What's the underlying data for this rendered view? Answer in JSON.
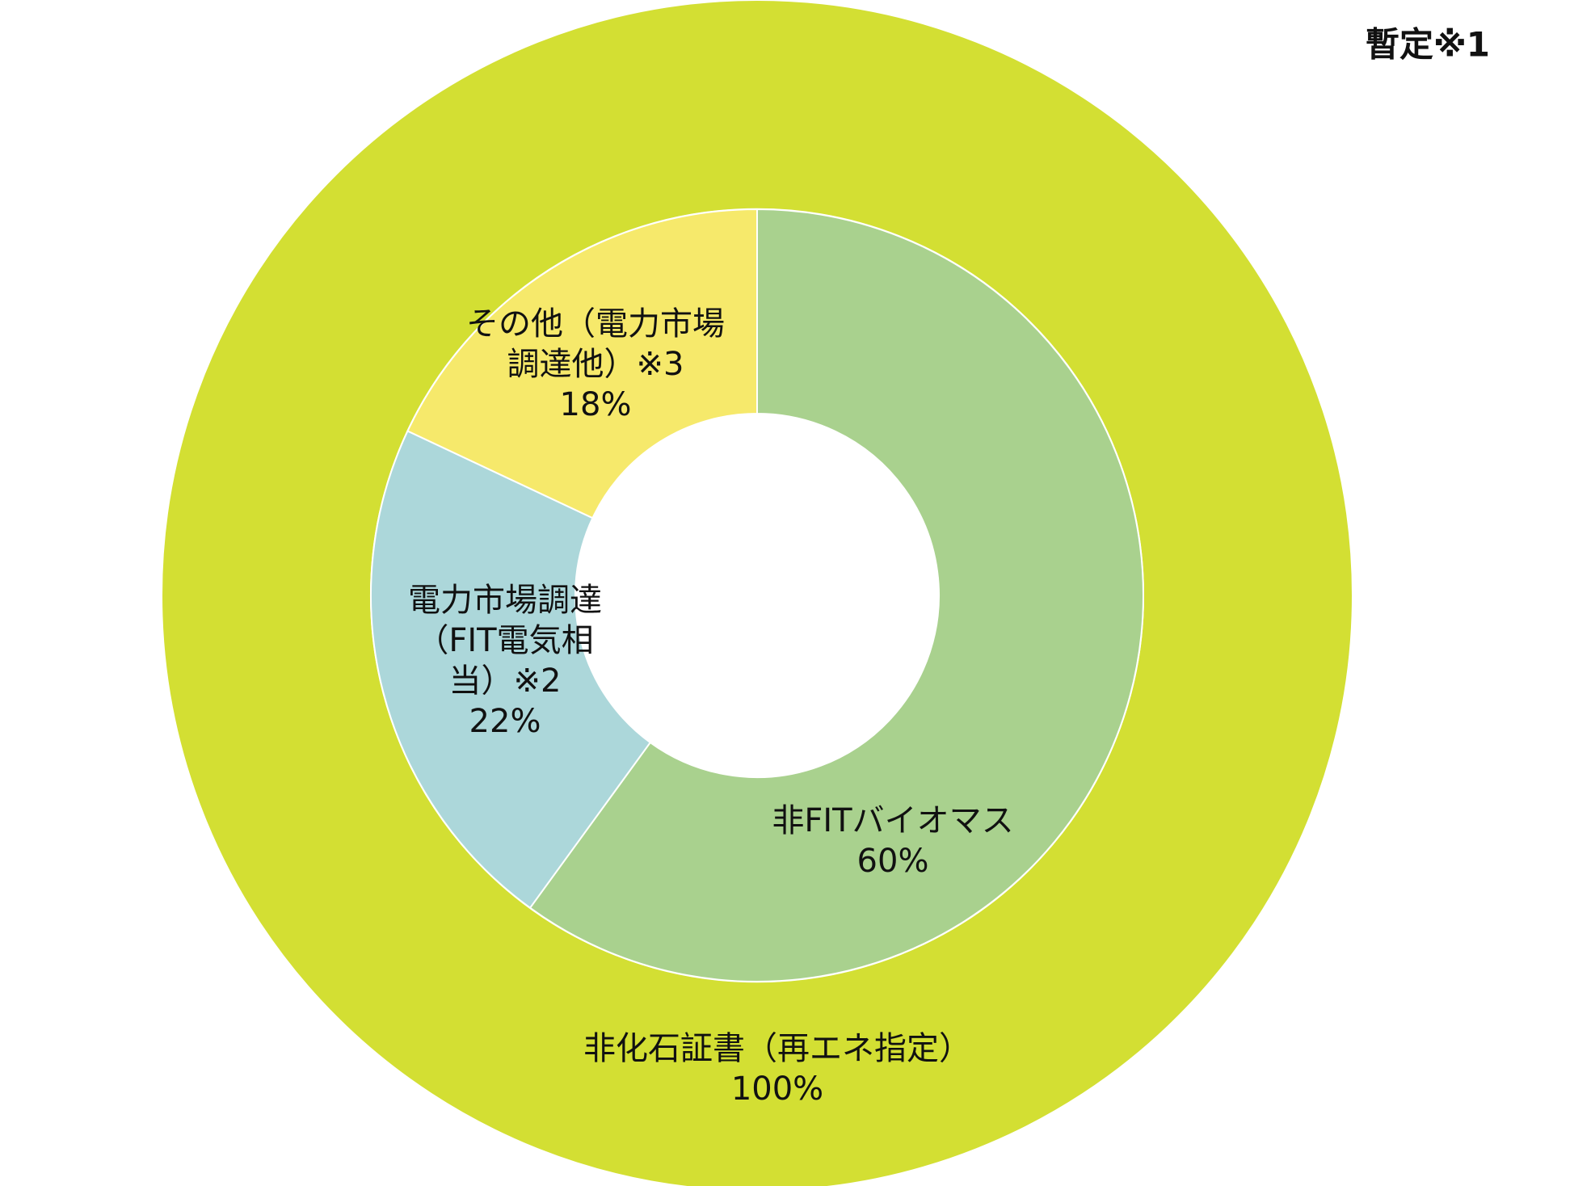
{
  "chart_data": {
    "type": "nested-donut",
    "title": "暫定※1",
    "outer": {
      "categories": [
        "非化石証書（再エネ指定）"
      ],
      "values": [
        100
      ],
      "value_labels": [
        "100%"
      ],
      "colors": [
        "#d3df33"
      ]
    },
    "inner": {
      "categories": [
        "非FITバイオマス",
        "電力市場調達（FIT電気相当）※2",
        "その他（電力市場調達他）※3"
      ],
      "values": [
        60,
        22,
        18
      ],
      "value_labels": [
        "60%",
        "22%",
        "18%"
      ],
      "colors": [
        "#a9d18e",
        "#acd7da",
        "#f6e96b"
      ]
    }
  }
}
